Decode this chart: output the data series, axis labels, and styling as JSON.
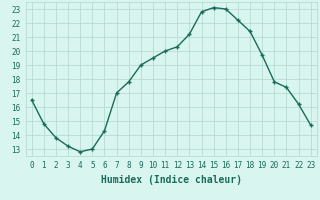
{
  "x": [
    0,
    1,
    2,
    3,
    4,
    5,
    6,
    7,
    8,
    9,
    10,
    11,
    12,
    13,
    14,
    15,
    16,
    17,
    18,
    19,
    20,
    21,
    22,
    23
  ],
  "y": [
    16.5,
    14.8,
    13.8,
    13.2,
    12.8,
    13.0,
    14.3,
    17.0,
    17.8,
    19.0,
    19.5,
    20.0,
    20.3,
    21.2,
    22.8,
    23.1,
    23.0,
    22.2,
    21.4,
    19.7,
    17.8,
    17.4,
    16.2,
    14.7
  ],
  "line_color": "#1a6b5a",
  "marker": "+",
  "marker_size": 3,
  "bg_color": "#d8f5f0",
  "grid_color": "#b0d8d0",
  "xlabel": "Humidex (Indice chaleur)",
  "ylim": [
    12.5,
    23.5
  ],
  "yticks": [
    13,
    14,
    15,
    16,
    17,
    18,
    19,
    20,
    21,
    22,
    23
  ],
  "xticks": [
    0,
    1,
    2,
    3,
    4,
    5,
    6,
    7,
    8,
    9,
    10,
    11,
    12,
    13,
    14,
    15,
    16,
    17,
    18,
    19,
    20,
    21,
    22,
    23
  ],
  "tick_label_fontsize": 5.5,
  "xlabel_fontsize": 7,
  "line_width": 1.0
}
